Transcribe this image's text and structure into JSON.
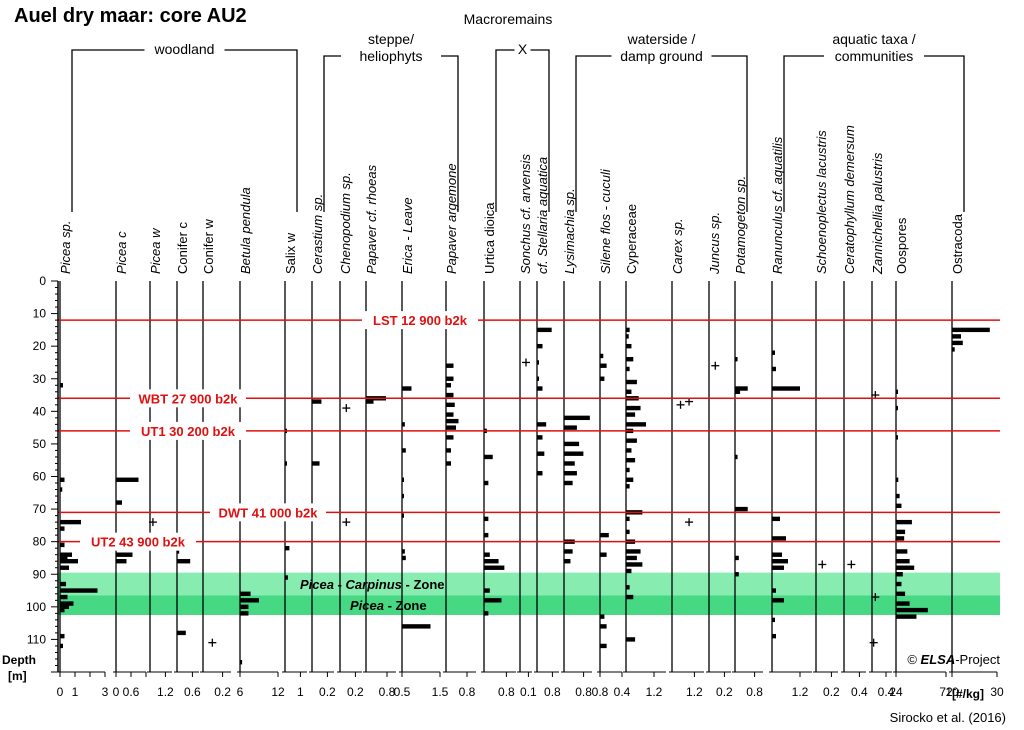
{
  "title": "Auel dry maar: core AU2",
  "super_title": "Macroremains",
  "groups": [
    {
      "id": "woodland",
      "label_lines": [
        "woodland"
      ]
    },
    {
      "id": "steppe",
      "label_lines": [
        "steppe/",
        "heliophyts"
      ]
    },
    {
      "id": "x",
      "label_lines": [
        "X"
      ]
    },
    {
      "id": "waterside",
      "label_lines": [
        "waterside /",
        "damp ground"
      ]
    },
    {
      "id": "aquatic",
      "label_lines": [
        "aquatic taxa /",
        "communities"
      ]
    }
  ],
  "y_axis": {
    "label_line1": "Depth",
    "label_line2": "[m]",
    "range": [
      0,
      120
    ],
    "ticks": [
      0,
      10,
      20,
      30,
      40,
      50,
      60,
      70,
      80,
      90,
      100,
      110
    ]
  },
  "unit_label": "[#/kg]",
  "events": [
    {
      "label": "LST 12 900 b2k",
      "depth": 12
    },
    {
      "label": "WBT 27 900 b2k",
      "depth": 36
    },
    {
      "label": "UT1 30 200 b2k",
      "depth": 46
    },
    {
      "label": "DWT 41 000 b2k",
      "depth": 71
    },
    {
      "label": "UT2 43 900 b2k",
      "depth": 80
    }
  ],
  "zones": [
    {
      "label_parts": [
        "Picea",
        " - ",
        "Carpinus",
        " - Zone"
      ],
      "from": 89.5,
      "to": 96.5
    },
    {
      "label_parts": [
        "Picea",
        " - Zone"
      ],
      "from": 96.5,
      "to": 102.5
    }
  ],
  "copyright": {
    "prefix": "© ",
    "brand": "ELSA",
    "suffix": "-Project"
  },
  "citation": "Sirocko et al. (2016)",
  "colors": {
    "event_line": "#e01010",
    "zone_upper": "#86ecb0",
    "zone_lower": "#47d884",
    "bar": "#000000",
    "axis": "#000000"
  },
  "chart_data": {
    "type": "bar",
    "orientation": "horizontal",
    "title": "Auel dry maar: core AU2",
    "ylabel": "Depth [m]",
    "xlabel": "[#/kg]",
    "ylim": [
      0,
      120
    ],
    "series": [
      {
        "name": "Picea sp.",
        "italic": true,
        "group": "woodland",
        "ticks": [
          "0",
          "1",
          "",
          "3"
        ],
        "max": 3,
        "values": [
          [
            32,
            0.2
          ],
          [
            61,
            0.3
          ],
          [
            64,
            0.15
          ],
          [
            74,
            1.4
          ],
          [
            76,
            0.3
          ],
          [
            81,
            0.3
          ],
          [
            84,
            0.8
          ],
          [
            85,
            0.5
          ],
          [
            86,
            1.2
          ],
          [
            88,
            0.6
          ],
          [
            93,
            0.4
          ],
          [
            95,
            2.5
          ],
          [
            97,
            0.5
          ],
          [
            99,
            0.9
          ],
          [
            100,
            0.6
          ],
          [
            101,
            0.3
          ],
          [
            109,
            0.3
          ],
          [
            112,
            0.2
          ]
        ]
      },
      {
        "name": "Picea c",
        "italic": true,
        "group": "woodland",
        "ticks": [
          "0",
          "0.6",
          ""
        ],
        "max": 1,
        "values": [
          [
            61,
            0.75
          ],
          [
            68,
            0.2
          ],
          [
            84,
            0.55
          ],
          [
            86,
            0.35
          ]
        ]
      },
      {
        "name": "Picea w",
        "italic": true,
        "group": "woodland",
        "ticks": [
          "1.2"
        ],
        "max": 1.5,
        "values": []
      },
      {
        "name": "Conifer c",
        "italic": false,
        "group": "woodland",
        "ticks": [
          "0.6"
        ],
        "max": 1,
        "values": [
          [
            83,
            0.1
          ],
          [
            86,
            0.6
          ],
          [
            108,
            0.4
          ]
        ]
      },
      {
        "name": "Conifer w",
        "italic": false,
        "group": "woodland",
        "ticks": [
          "0.2"
        ],
        "max": 0.3,
        "values": []
      },
      {
        "name": "Betula pendula",
        "italic": true,
        "group": "woodland",
        "ticks": [
          "6",
          "12"
        ],
        "max": 18,
        "values": [
          [
            96,
            5
          ],
          [
            98,
            9
          ],
          [
            100,
            4
          ],
          [
            102,
            4
          ],
          [
            117,
            1
          ]
        ]
      },
      {
        "name": "Salix w",
        "italic": false,
        "group": "woodland",
        "ticks": [
          "1"
        ],
        "max": 1.5,
        "values": [
          [
            46,
            0.05
          ],
          [
            56,
            0.1
          ],
          [
            82,
            0.3
          ],
          [
            91,
            0.2
          ]
        ]
      },
      {
        "name": "Cerastium sp.",
        "italic": true,
        "group": "steppe",
        "ticks": [
          "0.2"
        ],
        "max": 0.35,
        "values": [
          [
            37,
            0.15
          ],
          [
            56,
            0.12
          ]
        ]
      },
      {
        "name": "Chenopodium sp.",
        "italic": true,
        "group": "steppe",
        "ticks": [
          "0.2"
        ],
        "max": 0.35,
        "values": []
      },
      {
        "name": "Papaver cf. rhoeas",
        "italic": true,
        "group": "steppe",
        "ticks": [
          "0.8"
        ],
        "max": 1.2,
        "values": [
          [
            36,
            0.8
          ],
          [
            37,
            0.3
          ]
        ]
      },
      {
        "name": "Erica - Leave",
        "italic": true,
        "group": "steppe",
        "ticks": [
          "0.5",
          "1.5"
        ],
        "max": 2,
        "values": [
          [
            33,
            0.5
          ],
          [
            44,
            0.15
          ],
          [
            52,
            0.2
          ],
          [
            61,
            0.1
          ],
          [
            66,
            0.1
          ],
          [
            72,
            0.1
          ],
          [
            83,
            0.15
          ],
          [
            85,
            0.2
          ],
          [
            106,
            1.5
          ]
        ]
      },
      {
        "name": "Papaver argemone",
        "italic": true,
        "group": "steppe",
        "ticks": [
          "0.8"
        ],
        "max": 1.2,
        "values": [
          [
            26,
            0.3
          ],
          [
            30,
            0.3
          ],
          [
            32,
            0.2
          ],
          [
            35,
            0.3
          ],
          [
            38,
            0.35
          ],
          [
            41,
            0.3
          ],
          [
            43,
            0.5
          ],
          [
            45,
            0.4
          ],
          [
            48,
            0.3
          ],
          [
            52,
            0.2
          ],
          [
            56,
            0.2
          ]
        ]
      },
      {
        "name": "Urtica dioica",
        "italic": false,
        "group": "x",
        "ticks": [
          "0.8"
        ],
        "max": 1.1,
        "values": [
          [
            46,
            0.1
          ],
          [
            54,
            0.3
          ],
          [
            62,
            0.15
          ],
          [
            73,
            0.15
          ],
          [
            78,
            0.15
          ],
          [
            84,
            0.2
          ],
          [
            86,
            0.5
          ],
          [
            88,
            0.7
          ],
          [
            95,
            0.2
          ],
          [
            98,
            0.6
          ],
          [
            102,
            0.15
          ]
        ]
      },
      {
        "name": "Sonchus cf. arvensis",
        "italic": true,
        "group": "x",
        "ticks": [
          "0.1"
        ],
        "max": 0.2,
        "values": []
      },
      {
        "name": "cf. Stellaria aquatica",
        "italic": true,
        "group": "x",
        "ticks": [
          "0.8"
        ],
        "max": 1.2,
        "values": [
          [
            15,
            0.8
          ],
          [
            20,
            0.3
          ],
          [
            25,
            0.1
          ],
          [
            30,
            0.1
          ],
          [
            33,
            0.3
          ],
          [
            44,
            0.5
          ],
          [
            48,
            0.3
          ],
          [
            53,
            0.4
          ],
          [
            59,
            0.3
          ]
        ]
      },
      {
        "name": "Lysimachia sp.",
        "italic": true,
        "group": "waterside",
        "ticks": [
          "0.8"
        ],
        "max": 1.3,
        "values": [
          [
            42,
            1.2
          ],
          [
            45,
            0.6
          ],
          [
            50,
            0.7
          ],
          [
            53,
            0.9
          ],
          [
            56,
            0.5
          ],
          [
            59,
            0.6
          ],
          [
            62,
            0.4
          ],
          [
            80,
            0.5
          ],
          [
            83,
            0.4
          ],
          [
            86,
            0.3
          ]
        ]
      },
      {
        "name": "Silene flos - cuculi",
        "italic": true,
        "group": "waterside",
        "ticks": [
          "0.8",
          "0.4"
        ],
        "max": 1,
        "values": [
          [
            23,
            0.15
          ],
          [
            26,
            0.3
          ],
          [
            30,
            0.2
          ],
          [
            78,
            0.4
          ],
          [
            84,
            0.3
          ],
          [
            103,
            0.2
          ],
          [
            106,
            0.3
          ],
          [
            112,
            0.3
          ]
        ]
      },
      {
        "name": "Cyperaceae",
        "italic": false,
        "group": "waterside",
        "ticks": [
          "1.2"
        ],
        "max": 2.2,
        "values": [
          [
            15,
            0.2
          ],
          [
            17,
            0.15
          ],
          [
            20,
            0.3
          ],
          [
            24,
            0.4
          ],
          [
            27,
            0.2
          ],
          [
            31,
            0.6
          ],
          [
            34,
            0.3
          ],
          [
            36,
            0.7
          ],
          [
            39,
            0.8
          ],
          [
            41,
            0.5
          ],
          [
            44,
            1.1
          ],
          [
            46,
            0.4
          ],
          [
            49,
            0.6
          ],
          [
            52,
            0.3
          ],
          [
            55,
            0.5
          ],
          [
            58,
            0.2
          ],
          [
            61,
            0.4
          ],
          [
            63,
            0.2
          ],
          [
            71,
            0.9
          ],
          [
            73,
            0.2
          ],
          [
            77,
            0.2
          ],
          [
            80,
            0.5
          ],
          [
            83,
            0.8
          ],
          [
            85,
            0.6
          ],
          [
            87,
            0.9
          ],
          [
            89,
            0.3
          ],
          [
            94,
            0.2
          ],
          [
            97,
            0.4
          ],
          [
            110,
            0.5
          ]
        ]
      },
      {
        "name": "Carex sp.",
        "italic": true,
        "group": "waterside",
        "ticks": [
          "1.2"
        ],
        "max": 1.5,
        "values": []
      },
      {
        "name": "Juncus sp.",
        "italic": true,
        "group": "waterside",
        "ticks": [
          "0.2"
        ],
        "max": 0.35,
        "values": []
      },
      {
        "name": "Potamogeton sp.",
        "italic": true,
        "group": "waterside",
        "ticks": [
          "0.8"
        ],
        "max": 1.1,
        "values": [
          [
            24,
            0.1
          ],
          [
            33,
            0.5
          ],
          [
            34,
            0.2
          ],
          [
            54,
            0.1
          ],
          [
            70,
            0.5
          ],
          [
            85,
            0.15
          ],
          [
            90,
            0.15
          ]
        ]
      },
      {
        "name": "Ranunculus cf. aquatilis",
        "italic": true,
        "group": "aquatic",
        "ticks": [
          "1.2"
        ],
        "max": 2,
        "values": [
          [
            22,
            0.15
          ],
          [
            27,
            0.2
          ],
          [
            33,
            1.4
          ],
          [
            73,
            0.4
          ],
          [
            79,
            0.7
          ],
          [
            84,
            0.5
          ],
          [
            86,
            0.8
          ],
          [
            88,
            0.6
          ],
          [
            95,
            0.2
          ],
          [
            98,
            0.6
          ],
          [
            104,
            0.15
          ],
          [
            109,
            0.2
          ]
        ]
      },
      {
        "name": "Schoenoplectus lacustris",
        "italic": true,
        "group": "aquatic",
        "ticks": [
          "0.2"
        ],
        "max": 0.35,
        "values": []
      },
      {
        "name": "Ceratophyllum demersum",
        "italic": true,
        "group": "aquatic",
        "ticks": [
          "0.4"
        ],
        "max": 0.6,
        "values": []
      },
      {
        "name": "Zannichellia palustris",
        "italic": true,
        "group": "aquatic",
        "ticks": [
          "0.4"
        ],
        "max": 0.6,
        "values": []
      },
      {
        "name": "Oospores",
        "italic": false,
        "group": "aquatic",
        "ticks": [
          "24",
          "72"
        ],
        "max": 110,
        "values": [
          [
            34,
            4
          ],
          [
            39,
            2
          ],
          [
            48,
            2
          ],
          [
            61,
            5
          ],
          [
            66,
            8
          ],
          [
            69,
            12
          ],
          [
            74,
            35
          ],
          [
            77,
            20
          ],
          [
            79,
            18
          ],
          [
            83,
            25
          ],
          [
            86,
            30
          ],
          [
            88,
            40
          ],
          [
            90,
            15
          ],
          [
            93,
            12
          ],
          [
            96,
            20
          ],
          [
            99,
            30
          ],
          [
            101,
            70
          ],
          [
            103,
            45
          ]
        ]
      },
      {
        "name": "Ostracoda",
        "italic": false,
        "group": "x",
        "ticks": [
          "10",
          "30"
        ],
        "max": 50,
        "values": [
          [
            15,
            42
          ],
          [
            17,
            10
          ],
          [
            19,
            12
          ],
          [
            21,
            3
          ]
        ]
      }
    ],
    "markers": [
      {
        "series": "Chenopodium sp.",
        "depth": 39,
        "value": 0.1
      },
      {
        "series": "Chenopodium sp.",
        "depth": 74,
        "value": 0.1
      },
      {
        "series": "Picea w",
        "depth": 74,
        "value": 0.2
      },
      {
        "series": "Conifer w",
        "depth": 111,
        "value": 0.1
      },
      {
        "series": "Sonchus cf. arvensis",
        "depth": 25,
        "value": 0.1
      },
      {
        "series": "Carex sp.",
        "depth": 38,
        "value": 0.4
      },
      {
        "series": "Carex sp.",
        "depth": 37,
        "value": 0.8
      },
      {
        "series": "Carex sp.",
        "depth": 74,
        "value": 0.8
      },
      {
        "series": "Juncus sp.",
        "depth": 26,
        "value": 0.1
      },
      {
        "series": "Schoenoplectus lacustris",
        "depth": 87,
        "value": 0.1
      },
      {
        "series": "Ceratophyllum demersum",
        "depth": 87,
        "value": 0.2
      },
      {
        "series": "Zannichellia palustris",
        "depth": 35,
        "value": 0.1
      },
      {
        "series": "Zannichellia palustris",
        "depth": 97,
        "value": 0.1
      },
      {
        "series": "Zannichellia palustris",
        "depth": 111,
        "value": 0.05
      }
    ]
  }
}
